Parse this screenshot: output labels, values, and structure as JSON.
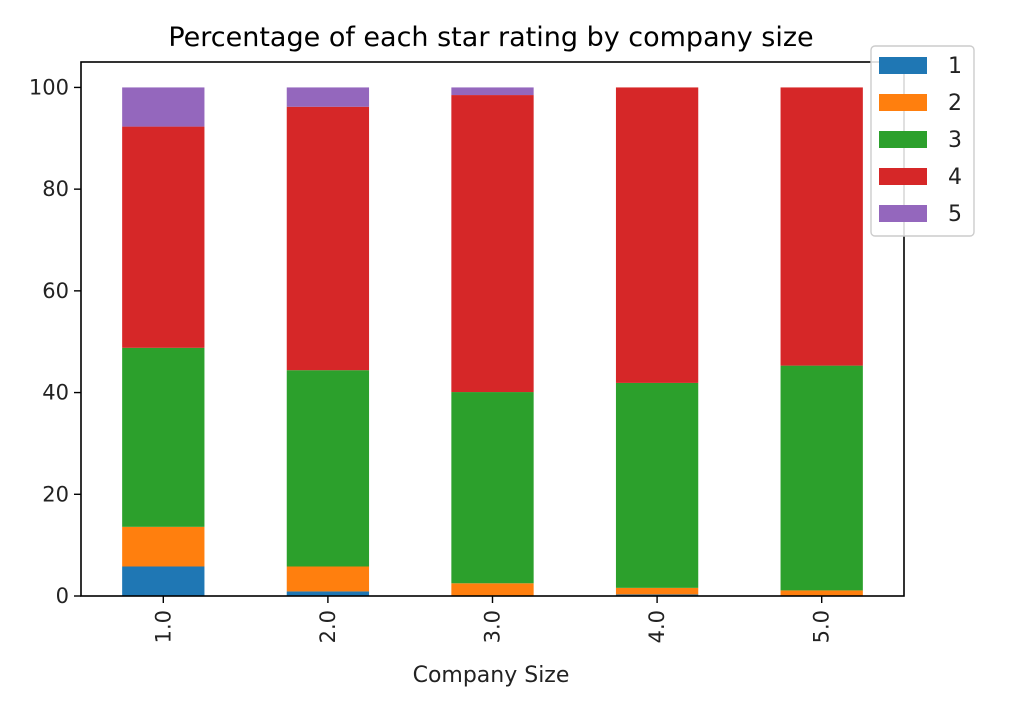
{
  "chart_data": {
    "type": "bar",
    "stacked": true,
    "title": "Percentage of each star rating by company size",
    "xlabel": "Company Size",
    "ylabel": "",
    "ylim": [
      0,
      105
    ],
    "yticks": [
      0,
      20,
      40,
      60,
      80,
      100
    ],
    "categories": [
      "1.0",
      "2.0",
      "3.0",
      "4.0",
      "5.0"
    ],
    "series": [
      {
        "name": "1",
        "color": "#1f77b4",
        "values": [
          5.8,
          0.9,
          0.0,
          0.3,
          0.0
        ]
      },
      {
        "name": "2",
        "color": "#ff7f0e",
        "values": [
          7.8,
          4.9,
          2.5,
          1.3,
          1.1
        ]
      },
      {
        "name": "3",
        "color": "#2ca02c",
        "values": [
          35.2,
          38.6,
          37.6,
          40.3,
          44.2
        ]
      },
      {
        "name": "4",
        "color": "#d62728",
        "values": [
          43.5,
          51.8,
          58.4,
          58.1,
          54.7
        ]
      },
      {
        "name": "5",
        "color": "#9467bd",
        "values": [
          7.7,
          3.8,
          1.5,
          0.0,
          0.0
        ]
      }
    ],
    "legend": {
      "position": "top-right"
    },
    "grid": false
  }
}
